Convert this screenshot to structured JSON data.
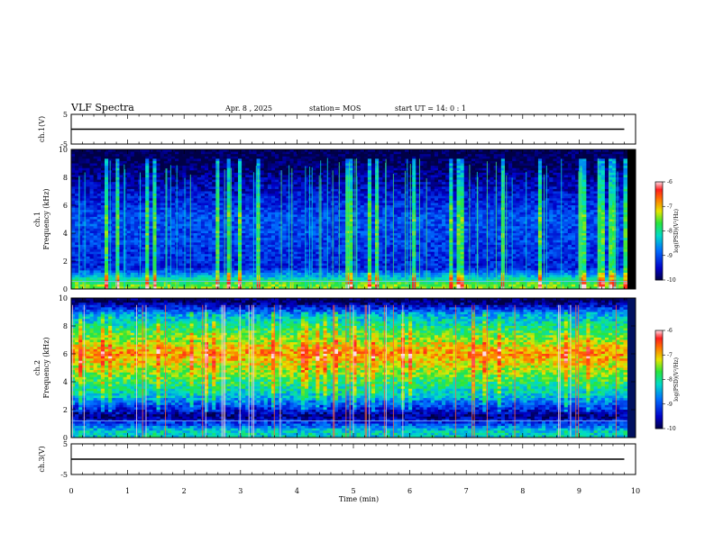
{
  "header": {
    "title": "VLF Spectra",
    "date": "Apr. 8 , 2025",
    "station": "station= MOS",
    "start": "start UT =  14: 0 : 1"
  },
  "chart_data": [
    {
      "type": "line",
      "name": "ch.1 waveform",
      "ylabel": "ch.1(V)",
      "yticks": [
        "5",
        "-5"
      ],
      "ylim": [
        -5,
        5
      ],
      "x": [
        0,
        9.8
      ],
      "values": [
        0,
        0
      ]
    },
    {
      "type": "heatmap",
      "name": "ch.1 spectrogram",
      "ylabel_lines": [
        "ch.1",
        "Frequency (kHz)"
      ],
      "yticks": [
        "0",
        "2",
        "4",
        "6",
        "8",
        "10"
      ],
      "ylim": [
        0,
        10
      ],
      "colorbar_label": "log(PSD)(V²/Hz)",
      "colorbar_ticks": [
        "-6",
        "-7",
        "-8",
        "-9",
        "-10"
      ],
      "colorbar_range": [
        -10,
        -6
      ],
      "background_level": -9.6,
      "band_level_by_freq_kHz": [
        [
          0.3,
          -7.5
        ],
        [
          1.5,
          -9.3
        ],
        [
          5,
          -9.0
        ],
        [
          9.3,
          -10
        ]
      ]
    },
    {
      "type": "heatmap",
      "name": "ch.2 spectrogram",
      "ylabel_lines": [
        "ch.2",
        "Frequency (kHz)"
      ],
      "yticks": [
        "0",
        "2",
        "4",
        "6",
        "8",
        "10"
      ],
      "ylim": [
        0,
        10
      ],
      "colorbar_label": "log(PSD)(V²/Hz)",
      "colorbar_ticks": [
        "-6",
        "-7",
        "-8",
        "-9",
        "-10"
      ],
      "colorbar_range": [
        -10,
        -6
      ],
      "band_level_by_freq_kHz": [
        [
          0.4,
          -8.2
        ],
        [
          1.5,
          -9.8
        ],
        [
          3.0,
          -8.3
        ],
        [
          6.0,
          -6.8
        ],
        [
          8.8,
          -8.5
        ],
        [
          9.8,
          -10
        ]
      ]
    },
    {
      "type": "line",
      "name": "ch.3 waveform",
      "ylabel": "ch.3(V)",
      "yticks": [
        "5",
        "-5"
      ],
      "ylim": [
        -5,
        5
      ],
      "x": [
        0,
        9.8
      ],
      "values": [
        0,
        0
      ]
    }
  ],
  "xaxis": {
    "label": "Time (min)",
    "ticks": [
      "0",
      "1",
      "2",
      "3",
      "4",
      "5",
      "6",
      "7",
      "8",
      "9",
      "10"
    ],
    "range": [
      0,
      10
    ]
  }
}
